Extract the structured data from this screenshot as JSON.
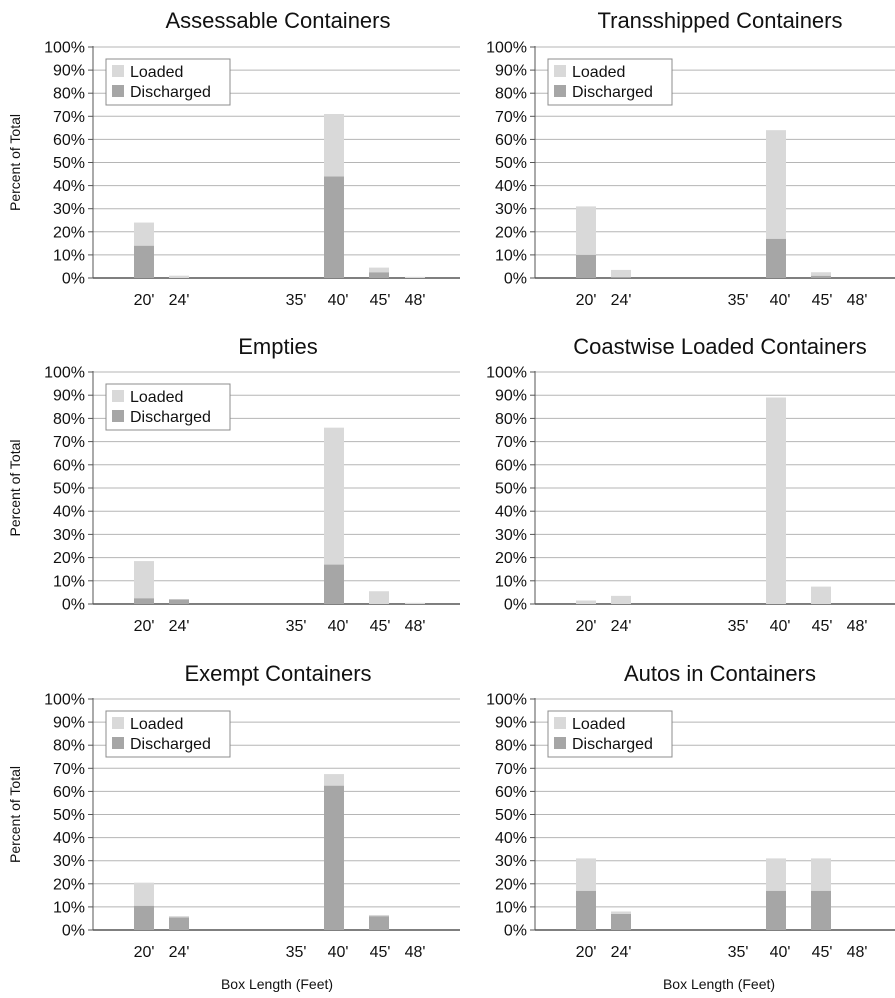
{
  "chart_data": [
    {
      "type": "bar",
      "title": "Assessable Containers",
      "ylabel": "Percent of Total",
      "xlabel": "",
      "categories": [
        "20'",
        "24'",
        "35'",
        "40'",
        "45'",
        "48'"
      ],
      "series": [
        {
          "name": "Loaded",
          "values": [
            10,
            1,
            0,
            27,
            2,
            0.5
          ]
        },
        {
          "name": "Discharged",
          "values": [
            14,
            0,
            0,
            44,
            2.5,
            0
          ]
        }
      ],
      "ylim": [
        0,
        100
      ],
      "yticks": [
        "0%",
        "10%",
        "20%",
        "30%",
        "40%",
        "50%",
        "60%",
        "70%",
        "80%",
        "90%",
        "100%"
      ],
      "stacked": true,
      "grid": true,
      "legend": "top-left"
    },
    {
      "type": "bar",
      "title": "Transshipped Containers",
      "ylabel": "",
      "xlabel": "",
      "categories": [
        "20'",
        "24'",
        "35'",
        "40'",
        "45'",
        "48'"
      ],
      "series": [
        {
          "name": "Loaded",
          "values": [
            21,
            3,
            0,
            47,
            1.5,
            0
          ]
        },
        {
          "name": "Discharged",
          "values": [
            10,
            0.5,
            0,
            17,
            1,
            0
          ]
        }
      ],
      "ylim": [
        0,
        100
      ],
      "yticks": [
        "0%",
        "10%",
        "20%",
        "30%",
        "40%",
        "50%",
        "60%",
        "70%",
        "80%",
        "90%",
        "100%"
      ],
      "stacked": true,
      "grid": true,
      "legend": "top-left"
    },
    {
      "type": "bar",
      "title": "Empties",
      "ylabel": "Percent of Total",
      "xlabel": "",
      "categories": [
        "20'",
        "24'",
        "35'",
        "40'",
        "45'",
        "48'"
      ],
      "series": [
        {
          "name": "Loaded",
          "values": [
            16,
            0,
            0,
            59,
            5.5,
            0.5
          ]
        },
        {
          "name": "Discharged",
          "values": [
            2.5,
            2,
            0,
            17,
            0,
            0
          ]
        }
      ],
      "ylim": [
        0,
        100
      ],
      "yticks": [
        "0%",
        "10%",
        "20%",
        "30%",
        "40%",
        "50%",
        "60%",
        "70%",
        "80%",
        "90%",
        "100%"
      ],
      "stacked": true,
      "grid": true,
      "legend": "top-left"
    },
    {
      "type": "bar",
      "title": "Coastwise Loaded Containers",
      "ylabel": "",
      "xlabel": "",
      "categories": [
        "20'",
        "24'",
        "35'",
        "40'",
        "45'",
        "48'"
      ],
      "series": [
        {
          "name": "Loaded",
          "values": [
            1.5,
            3.5,
            0,
            89,
            7.5,
            0
          ]
        },
        {
          "name": "Discharged",
          "values": [
            0,
            0,
            0,
            0,
            0,
            0
          ]
        }
      ],
      "ylim": [
        0,
        100
      ],
      "yticks": [
        "0%",
        "10%",
        "20%",
        "30%",
        "40%",
        "50%",
        "60%",
        "70%",
        "80%",
        "90%",
        "100%"
      ],
      "stacked": true,
      "grid": true,
      "legend": "none"
    },
    {
      "type": "bar",
      "title": "Exempt Containers",
      "ylabel": "Percent of Total",
      "xlabel": "Box Length (Feet)",
      "categories": [
        "20'",
        "24'",
        "35'",
        "40'",
        "45'",
        "48'"
      ],
      "series": [
        {
          "name": "Loaded",
          "values": [
            10,
            0.5,
            0,
            5,
            0.5,
            0
          ]
        },
        {
          "name": "Discharged",
          "values": [
            10.5,
            5.5,
            0,
            62.5,
            6,
            0
          ]
        }
      ],
      "ylim": [
        0,
        100
      ],
      "yticks": [
        "0%",
        "10%",
        "20%",
        "30%",
        "40%",
        "50%",
        "60%",
        "70%",
        "80%",
        "90%",
        "100%"
      ],
      "stacked": true,
      "grid": true,
      "legend": "top-left"
    },
    {
      "type": "bar",
      "title": "Autos in Containers",
      "ylabel": "",
      "xlabel": "Box Length (Feet)",
      "categories": [
        "20'",
        "24'",
        "35'",
        "40'",
        "45'",
        "48'"
      ],
      "series": [
        {
          "name": "Loaded",
          "values": [
            14,
            1,
            0,
            14,
            14,
            0
          ]
        },
        {
          "name": "Discharged",
          "values": [
            17,
            7,
            0,
            17,
            17,
            0
          ]
        }
      ],
      "ylim": [
        0,
        100
      ],
      "yticks": [
        "0%",
        "10%",
        "20%",
        "30%",
        "40%",
        "50%",
        "60%",
        "70%",
        "80%",
        "90%",
        "100%"
      ],
      "stacked": true,
      "grid": true,
      "legend": "top-left"
    }
  ],
  "colors": {
    "loaded": "#d9d9d9",
    "discharged": "#a6a6a6",
    "grid": "#b5b5b5",
    "axis": "#555555",
    "text": "#111111"
  }
}
